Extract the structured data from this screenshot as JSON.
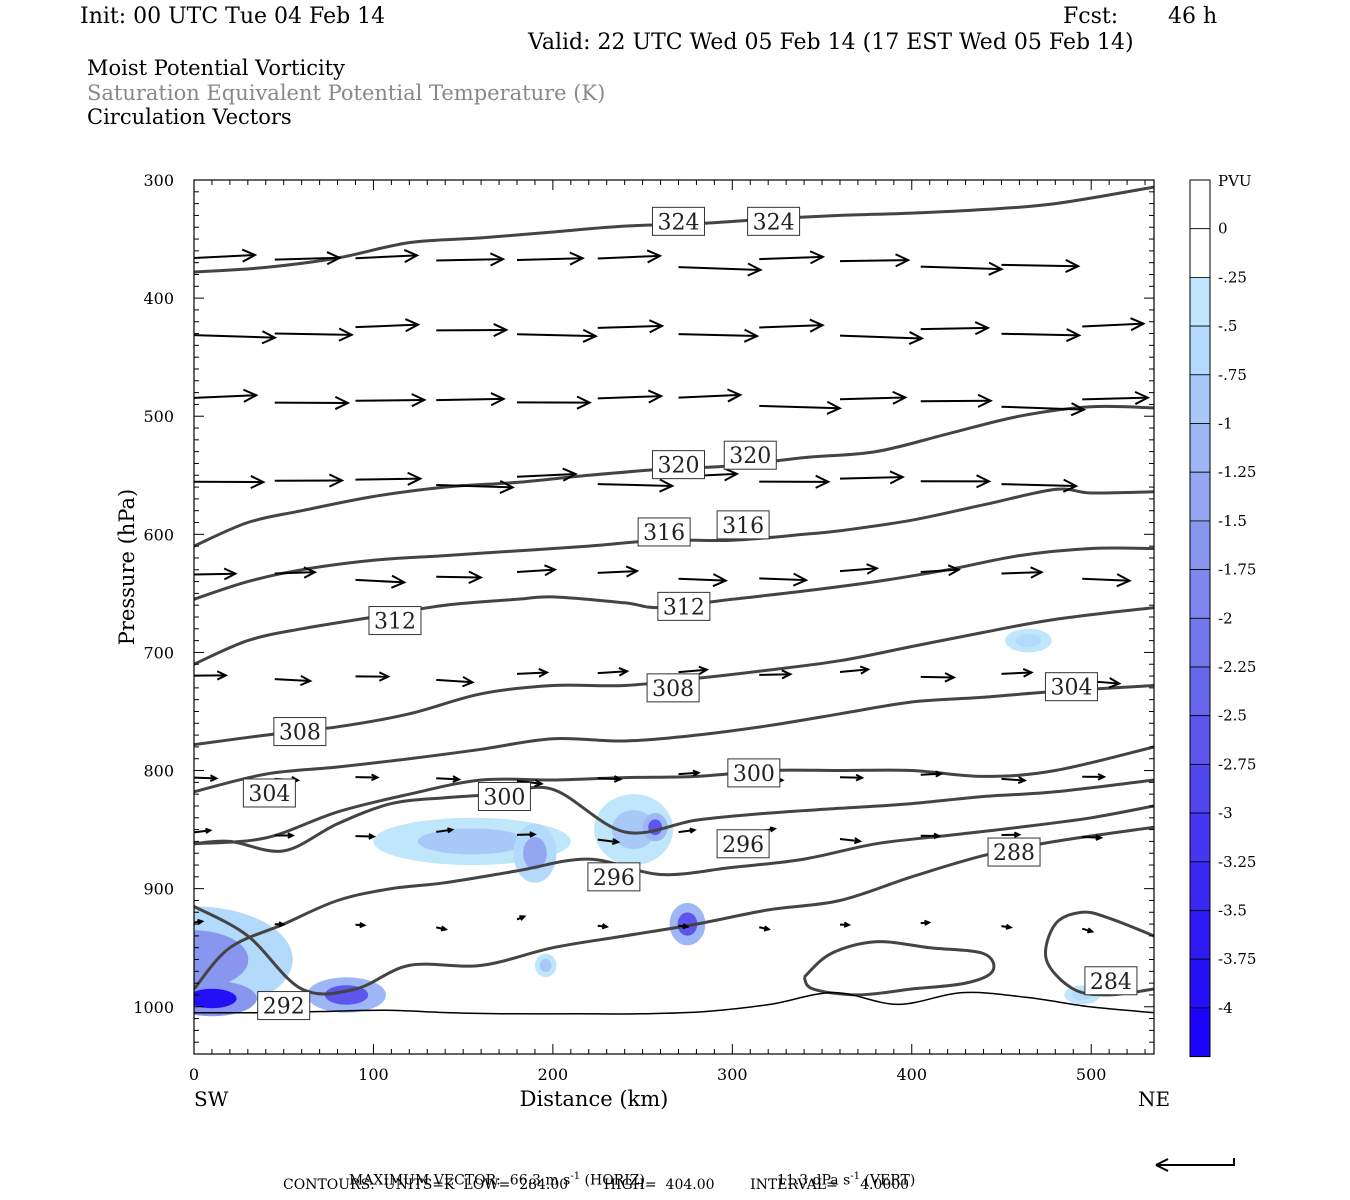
{
  "header": {
    "init": "Init: 00 UTC Tue 04 Feb 14",
    "fcst_label": "Fcst:",
    "fcst_value": "46 h",
    "valid": "Valid: 22 UTC Wed 05 Feb 14 (17 EST Wed 05 Feb 14)"
  },
  "fields": {
    "field1": "Moist Potential Vorticity",
    "field2": "Saturation Equivalent Potential Temperature (K)",
    "field3": "Circulation Vectors"
  },
  "colors": {
    "contour": "#444444",
    "vector": "#000000",
    "axis": "#000000"
  },
  "chart_data": {
    "type": "cross-section",
    "xlabel": "Distance (km)",
    "ylabel": "Pressure (hPa)",
    "xlim": [
      0,
      535
    ],
    "ylim": [
      1040,
      300
    ],
    "x_ticks": [
      0,
      100,
      200,
      300,
      400,
      500
    ],
    "y_ticks": [
      300,
      400,
      500,
      600,
      700,
      800,
      900,
      1000
    ],
    "x_end_labels": {
      "left": "SW",
      "right": "NE"
    },
    "colorbar": {
      "unit_label": "PVU",
      "levels": [
        "0",
        "-.25",
        "-.5",
        "-.75",
        "-1",
        "-1.25",
        "-1.5",
        "-1.75",
        "-2",
        "-2.25",
        "-2.5",
        "-2.75",
        "-3",
        "-3.25",
        "-3.5",
        "-3.75",
        "-4"
      ],
      "colors": [
        "#ffffff",
        "#ffffff",
        "#bfe6fb",
        "#b3d9fb",
        "#a8c8f8",
        "#9db6f5",
        "#93a6f2",
        "#8996ef",
        "#7f86ed",
        "#7476ec",
        "#6866ec",
        "#5c56ed",
        "#5046ee",
        "#4537f0",
        "#3a28f2",
        "#2f1af4",
        "#2410f6",
        "#1a05f8"
      ]
    },
    "theta_contours": [
      {
        "value": 324,
        "x": [
          0,
          40,
          80,
          120,
          160,
          200,
          240,
          280,
          320,
          360,
          400,
          440,
          480,
          535
        ],
        "p": [
          378,
          374,
          366,
          353,
          349,
          344,
          339,
          337,
          333,
          330,
          328,
          325,
          320,
          306
        ]
      },
      {
        "value": 320,
        "x": [
          0,
          30,
          60,
          100,
          140,
          180,
          220,
          260,
          300,
          340,
          380,
          420,
          460,
          500,
          535
        ],
        "p": [
          610,
          590,
          580,
          568,
          560,
          556,
          550,
          545,
          542,
          535,
          530,
          515,
          500,
          492,
          493
        ]
      },
      {
        "value": 316,
        "x": [
          0,
          30,
          60,
          100,
          140,
          180,
          220,
          260,
          300,
          340,
          360,
          400,
          440,
          480,
          500,
          535
        ],
        "p": [
          655,
          640,
          630,
          622,
          618,
          614,
          610,
          605,
          605,
          600,
          597,
          588,
          575,
          562,
          565,
          564
        ]
      },
      {
        "value": 312,
        "x": [
          0,
          30,
          60,
          100,
          140,
          180,
          200,
          240,
          260,
          300,
          340,
          380,
          420,
          460,
          500,
          535
        ],
        "p": [
          710,
          690,
          680,
          670,
          660,
          655,
          653,
          658,
          662,
          655,
          648,
          640,
          630,
          618,
          612,
          612
        ]
      },
      {
        "value": 308,
        "x": [
          0,
          40,
          80,
          120,
          160,
          200,
          240,
          280,
          320,
          360,
          400,
          440,
          480,
          535
        ],
        "p": [
          778,
          770,
          763,
          752,
          735,
          728,
          728,
          722,
          715,
          707,
          695,
          683,
          672,
          662
        ]
      },
      {
        "value": 304,
        "x": [
          0,
          40,
          80,
          120,
          160,
          200,
          240,
          280,
          320,
          360,
          400,
          440,
          480,
          535
        ],
        "p": [
          818,
          803,
          797,
          790,
          782,
          773,
          775,
          770,
          762,
          752,
          742,
          738,
          733,
          728
        ]
      },
      {
        "value": 300,
        "x": [
          0,
          40,
          80,
          120,
          160,
          200,
          240,
          280,
          320,
          360,
          400,
          440,
          480,
          535
        ],
        "p": [
          862,
          857,
          835,
          820,
          808,
          808,
          806,
          805,
          800,
          800,
          800,
          805,
          800,
          780
        ]
      },
      {
        "value": 296,
        "x": [
          0,
          20,
          50,
          80,
          110,
          140,
          170,
          200,
          240,
          280,
          320,
          360,
          400,
          440,
          480,
          535
        ],
        "p": [
          862,
          860,
          868,
          845,
          828,
          823,
          820,
          816,
          852,
          842,
          836,
          832,
          828,
          822,
          818,
          808
        ]
      },
      {
        "value": 292,
        "x": [
          0,
          20,
          50,
          80,
          110,
          140,
          180,
          220,
          260,
          300,
          340,
          380,
          420,
          460,
          500,
          535
        ],
        "p": [
          985,
          950,
          930,
          910,
          900,
          895,
          885,
          875,
          888,
          882,
          875,
          862,
          855,
          848,
          840,
          830
        ]
      },
      {
        "value": 288,
        "x": [
          0,
          30,
          60,
          90,
          120,
          160,
          200,
          240,
          280,
          320,
          360,
          400,
          440,
          480,
          535
        ],
        "p": [
          915,
          940,
          985,
          985,
          965,
          965,
          950,
          940,
          930,
          918,
          910,
          890,
          872,
          860,
          848
        ]
      }
    ],
    "contour_labels": [
      {
        "text": "324",
        "x": 270,
        "p": 335
      },
      {
        "text": "324",
        "x": 323,
        "p": 335
      },
      {
        "text": "320",
        "x": 270,
        "p": 541
      },
      {
        "text": "320",
        "x": 310,
        "p": 533
      },
      {
        "text": "316",
        "x": 262,
        "p": 598
      },
      {
        "text": "316",
        "x": 306,
        "p": 592
      },
      {
        "text": "312",
        "x": 112,
        "p": 673
      },
      {
        "text": "312",
        "x": 273,
        "p": 661
      },
      {
        "text": "308",
        "x": 267,
        "p": 730
      },
      {
        "text": "304",
        "x": 489,
        "p": 729
      },
      {
        "text": "308",
        "x": 59,
        "p": 767
      },
      {
        "text": "304",
        "x": 42,
        "p": 819
      },
      {
        "text": "300",
        "x": 173,
        "p": 822
      },
      {
        "text": "300",
        "x": 312,
        "p": 802
      },
      {
        "text": "296",
        "x": 306,
        "p": 862
      },
      {
        "text": "296",
        "x": 234,
        "p": 890
      },
      {
        "text": "288",
        "x": 457,
        "p": 869
      },
      {
        "text": "292",
        "x": 50,
        "p": 999
      },
      {
        "text": "284",
        "x": 511,
        "p": 978
      }
    ],
    "ground_p": [
      1005,
      1005,
      1004,
      1003,
      1005,
      1006,
      1006,
      1006,
      1004,
      998,
      988,
      998,
      988,
      992,
      1000,
      1005
    ],
    "pv_patches": [
      {
        "x": 0,
        "p": 960,
        "rx": 55,
        "rp": 45,
        "level": -1.5
      },
      {
        "x": 10,
        "p": 993,
        "rx": 25,
        "rp": 15,
        "level": -3.75
      },
      {
        "x": 85,
        "p": 990,
        "rx": 22,
        "rp": 15,
        "level": -2.5
      },
      {
        "x": 155,
        "p": 860,
        "rx": 55,
        "rp": 20,
        "level": -0.75
      },
      {
        "x": 190,
        "p": 870,
        "rx": 12,
        "rp": 25,
        "level": -1.25
      },
      {
        "x": 245,
        "p": 850,
        "rx": 22,
        "rp": 30,
        "level": -0.75
      },
      {
        "x": 257,
        "p": 848,
        "rx": 7,
        "rp": 12,
        "level": -2.5
      },
      {
        "x": 275,
        "p": 930,
        "rx": 10,
        "rp": 18,
        "level": -2.5
      },
      {
        "x": 465,
        "p": 690,
        "rx": 13,
        "rp": 10,
        "level": -0.5
      },
      {
        "x": 196,
        "p": 965,
        "rx": 6,
        "rp": 10,
        "level": -0.75
      },
      {
        "x": 495,
        "p": 990,
        "rx": 10,
        "rp": 8,
        "level": -0.5
      }
    ],
    "vector_rows": [
      {
        "p": 370,
        "len": 1.0
      },
      {
        "p": 428,
        "len": 1.0
      },
      {
        "p": 488,
        "len": 1.0
      },
      {
        "p": 555,
        "len": 0.95
      },
      {
        "p": 635,
        "len": 0.6
      },
      {
        "p": 720,
        "len": 0.45
      },
      {
        "p": 805,
        "len": 0.3
      },
      {
        "p": 855,
        "len": 0.25
      },
      {
        "p": 930,
        "len": 0.12
      }
    ],
    "max_vector_text": "MAXIMUM VECTOR:  66.3 m s",
    "max_vector_exp": "-1",
    "horiz_text": " (HORIZ)",
    "vert_text": "11.3 dPa s",
    "vert_exp": "-1",
    "vert_suffix": " (VERT)",
    "contours_text": "CONTOURS:  UNITS=K  LOW=  284.00        HIGH=  404.00        INTERVAL=     4.0000"
  }
}
